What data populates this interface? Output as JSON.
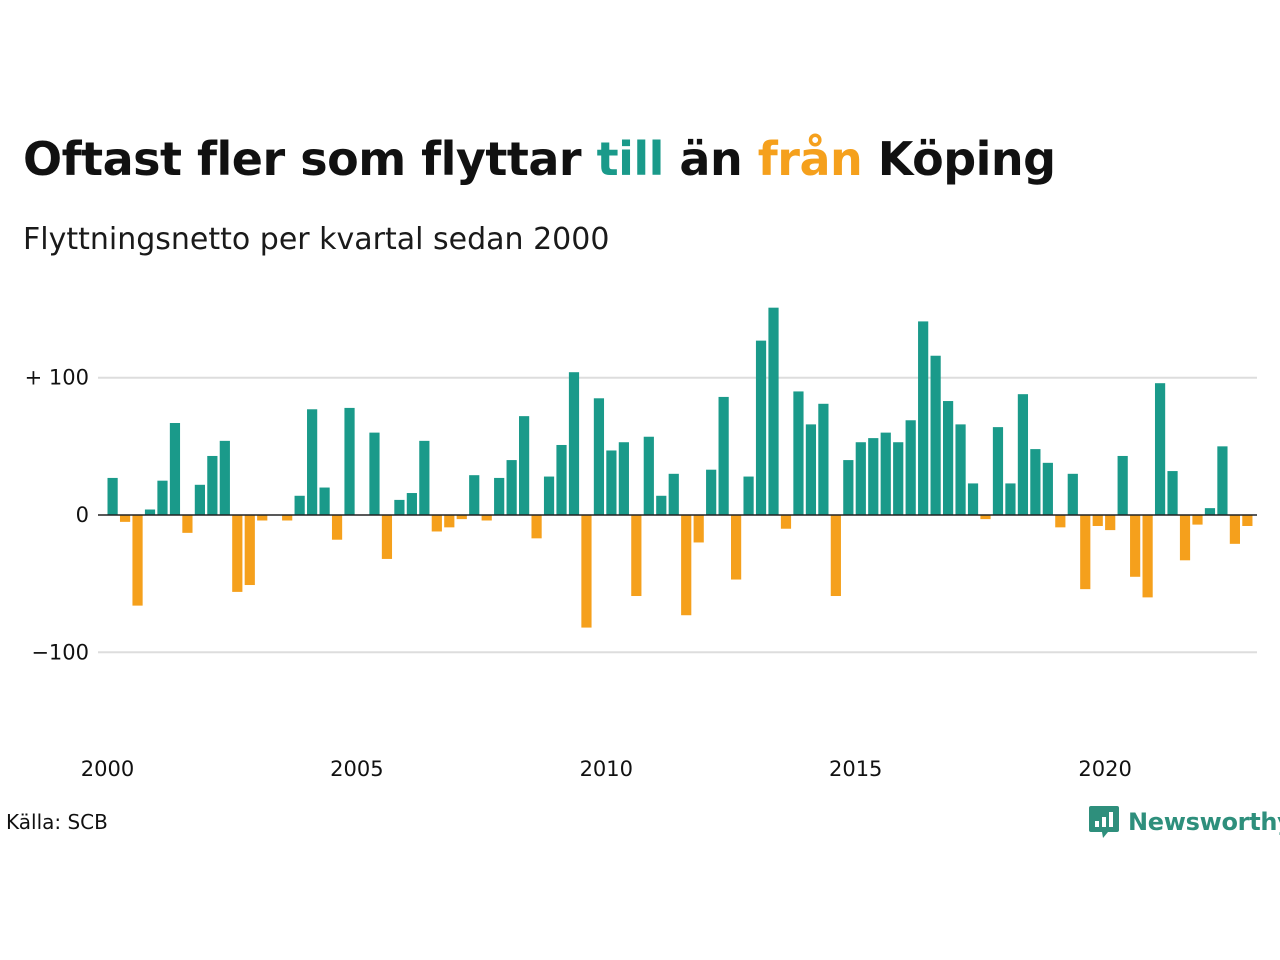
{
  "title": {
    "part1": "Oftast fler som flyttar ",
    "pos_word": "till",
    "part2": " än ",
    "neg_word": "från",
    "part3": " Köping"
  },
  "subtitle": "Flyttningsnetto per kvartal sedan 2000",
  "source": "Källa: SCB",
  "brand": {
    "name": "Newsworthy",
    "icon": "newsworthy-logo-icon"
  },
  "colors": {
    "positive": "#1a9a8a",
    "negative": "#f5a01c",
    "grid": "#dddddd",
    "text": "#111111"
  },
  "chart_data": {
    "type": "bar",
    "title": "Oftast fler som flyttar till än från Köping",
    "subtitle": "Flyttningsnetto per kvartal sedan 2000",
    "xlabel": "",
    "ylabel": "",
    "x_start": "2000 Q1",
    "period": "quarter",
    "ylim": [
      -160,
      160
    ],
    "yticks": [
      {
        "value": 100,
        "label": "+ 100"
      },
      {
        "value": 0,
        "label": "0"
      },
      {
        "value": -100,
        "label": "−100"
      }
    ],
    "xticks": [
      {
        "index": 0,
        "label": "2000"
      },
      {
        "index": 20,
        "label": "2005"
      },
      {
        "index": 40,
        "label": "2010"
      },
      {
        "index": 60,
        "label": "2015"
      },
      {
        "index": 80,
        "label": "2020"
      }
    ],
    "grid": true,
    "legend": "none",
    "values": [
      27,
      -5,
      -66,
      4,
      25,
      67,
      -13,
      22,
      43,
      54,
      -56,
      -51,
      -4,
      0,
      -4,
      14,
      77,
      20,
      -18,
      78,
      0,
      60,
      -32,
      11,
      16,
      54,
      -12,
      -9,
      -3,
      29,
      -4,
      27,
      40,
      72,
      -17,
      28,
      51,
      104,
      -82,
      85,
      47,
      53,
      -59,
      57,
      14,
      30,
      -73,
      -20,
      33,
      86,
      -47,
      28,
      127,
      151,
      -10,
      90,
      66,
      81,
      -59,
      40,
      53,
      56,
      60,
      53,
      69,
      141,
      116,
      83,
      66,
      23,
      -3,
      64,
      23,
      88,
      48,
      38,
      -9,
      30,
      -54,
      -8,
      -11,
      43,
      -45,
      -60,
      96,
      32,
      -33,
      -7,
      5,
      50,
      -21,
      -8
    ]
  }
}
